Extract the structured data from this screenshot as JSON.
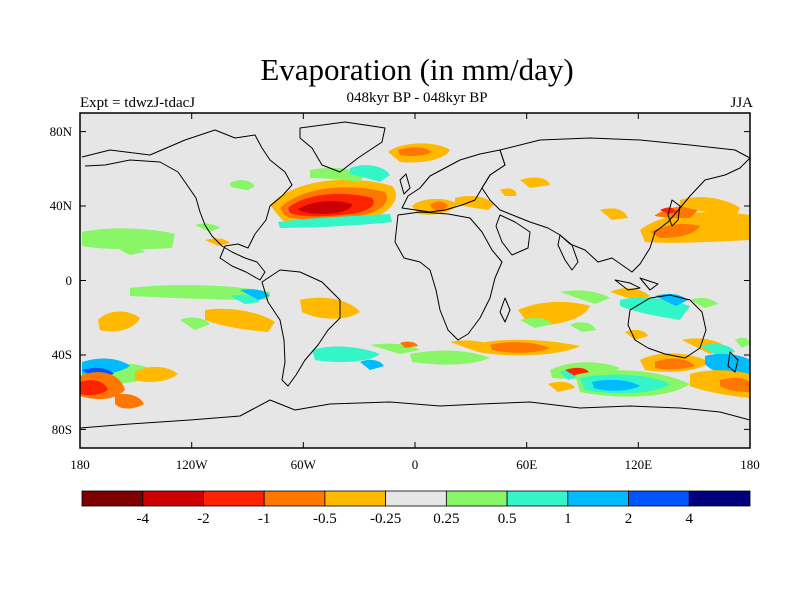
{
  "title": "Evaporation (in mm/day)",
  "subtitle": "048kyr BP - 048kyr BP",
  "left_label": "Expt = tdwzJ-tdacJ",
  "right_label": "JJA",
  "chart_data": {
    "type": "heatmap",
    "title": "Evaporation (in mm/day)",
    "subtitle": "048kyr BP - 048kyr BP",
    "lat_ticks": [
      "80N",
      "40N",
      "0",
      "40S",
      "80S"
    ],
    "lon_ticks": [
      "180",
      "120W",
      "60W",
      "0",
      "60E",
      "120E",
      "180"
    ],
    "colorbar": {
      "levels": [
        "-4",
        "-2",
        "-1",
        "-0.5",
        "-0.25",
        "0.25",
        "0.5",
        "1",
        "2",
        "4"
      ],
      "colors": [
        "#7f0000",
        "#cc0000",
        "#ff2200",
        "#ff7700",
        "#ffb900",
        "#e6e6e6",
        "#88f666",
        "#33f5c8",
        "#00bbff",
        "#0055ff",
        "#00007f"
      ]
    },
    "background_color": "#e6e6e6"
  }
}
